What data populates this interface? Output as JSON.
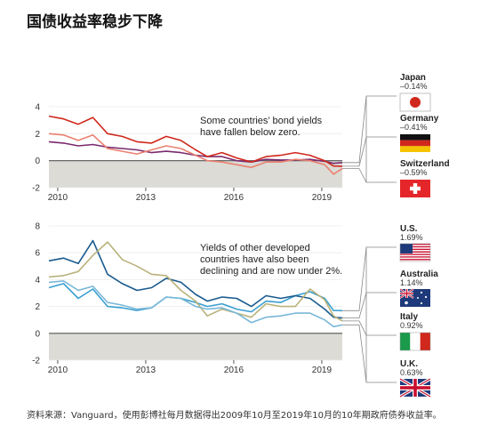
{
  "title": "国债收益率稳步下降",
  "source": "资料来源：Vanguard，使用彭博社每月数据得出2009年10月至2019年10月的10年期政府债券收益率。",
  "chart_data": [
    {
      "type": "line",
      "title": "",
      "annotation": [
        "Some countries’ bond yields",
        "have fallen below zero."
      ],
      "x_ticks": [
        "2010",
        "2013",
        "2016",
        "2019"
      ],
      "y_ticks": [
        4,
        2,
        0,
        -2
      ],
      "xlim": [
        2009.8,
        2019.8
      ],
      "ylim": [
        -2,
        4
      ],
      "x": [
        2009.8,
        2010.3,
        2010.8,
        2011.3,
        2011.8,
        2012.3,
        2012.8,
        2013.3,
        2013.8,
        2014.3,
        2014.8,
        2015.2,
        2015.7,
        2016.2,
        2016.7,
        2017.2,
        2017.7,
        2018.2,
        2018.7,
        2019.2,
        2019.5,
        2019.8
      ],
      "series": [
        {
          "name": "Japan",
          "color": "#7a2a6e",
          "values": [
            1.4,
            1.3,
            1.1,
            1.2,
            1.0,
            0.9,
            0.8,
            0.6,
            0.7,
            0.6,
            0.4,
            0.3,
            0.3,
            0.0,
            -0.1,
            0.1,
            0.05,
            0.05,
            0.1,
            -0.05,
            -0.2,
            -0.14
          ]
        },
        {
          "name": "Germany",
          "color": "#d0281c",
          "values": [
            3.3,
            3.1,
            2.7,
            3.2,
            2.0,
            1.8,
            1.4,
            1.3,
            1.8,
            1.5,
            0.8,
            0.3,
            0.6,
            0.2,
            -0.1,
            0.3,
            0.4,
            0.6,
            0.4,
            0.0,
            -0.4,
            -0.41
          ]
        },
        {
          "name": "Switzerland",
          "color": "#ea8070",
          "values": [
            2.0,
            1.9,
            1.5,
            1.9,
            0.9,
            0.7,
            0.5,
            0.8,
            1.1,
            0.9,
            0.4,
            0.0,
            -0.1,
            -0.3,
            -0.5,
            -0.1,
            -0.1,
            0.1,
            0.0,
            -0.3,
            -1.0,
            -0.59
          ]
        }
      ],
      "labels": [
        {
          "name": "Japan",
          "value": "–0.14%",
          "flag": "japan-flag"
        },
        {
          "name": "Germany",
          "value": "–0.41%",
          "flag": "germany-flag"
        },
        {
          "name": "Switzerland",
          "value": "–0.59%",
          "flag": "switzerland-flag"
        }
      ]
    },
    {
      "type": "line",
      "title": "",
      "annotation": [
        "Yields of other developed",
        "countries have also been",
        "declining and are now under 2%."
      ],
      "x_ticks": [
        "2010",
        "2013",
        "2016",
        "2019"
      ],
      "y_ticks": [
        8,
        6,
        4,
        2,
        0,
        -2
      ],
      "xlim": [
        2009.8,
        2019.8
      ],
      "ylim": [
        -2,
        8
      ],
      "x": [
        2009.8,
        2010.3,
        2010.8,
        2011.3,
        2011.8,
        2012.3,
        2012.8,
        2013.3,
        2013.8,
        2014.3,
        2014.8,
        2015.2,
        2015.7,
        2016.2,
        2016.7,
        2017.2,
        2017.7,
        2018.2,
        2018.7,
        2019.2,
        2019.5,
        2019.8
      ],
      "series": [
        {
          "name": "U.S.",
          "color": "#3a9fd0",
          "values": [
            3.4,
            3.7,
            2.6,
            3.3,
            2.0,
            1.9,
            1.7,
            1.9,
            2.7,
            2.6,
            2.3,
            2.0,
            2.2,
            1.8,
            1.6,
            2.4,
            2.3,
            2.8,
            3.1,
            2.6,
            1.7,
            1.69
          ]
        },
        {
          "name": "Australia",
          "color": "#1a5a8e",
          "values": [
            5.4,
            5.6,
            5.2,
            6.9,
            4.4,
            3.7,
            3.2,
            3.4,
            4.1,
            3.8,
            2.9,
            2.4,
            2.7,
            2.6,
            2.0,
            2.8,
            2.6,
            2.8,
            2.6,
            1.8,
            1.2,
            1.14
          ]
        },
        {
          "name": "Italy",
          "color": "#b9b27a",
          "values": [
            4.2,
            4.3,
            4.6,
            5.8,
            6.8,
            5.5,
            5.0,
            4.4,
            4.3,
            3.2,
            2.4,
            1.3,
            1.8,
            1.5,
            1.2,
            2.2,
            2.0,
            2.0,
            3.3,
            2.5,
            1.3,
            0.92
          ]
        },
        {
          "name": "U.K.",
          "color": "#79b7d8",
          "values": [
            3.8,
            3.9,
            3.2,
            3.5,
            2.3,
            2.1,
            1.8,
            1.9,
            2.7,
            2.6,
            2.0,
            1.8,
            1.9,
            1.5,
            0.8,
            1.2,
            1.3,
            1.5,
            1.5,
            1.0,
            0.5,
            0.63
          ]
        }
      ],
      "labels": [
        {
          "name": "U.S.",
          "value": "1.69%",
          "flag": "us-flag"
        },
        {
          "name": "Australia",
          "value": "1.14%",
          "flag": "australia-flag"
        },
        {
          "name": "Italy",
          "value": "0.92%",
          "flag": "italy-flag"
        },
        {
          "name": "U.K.",
          "value": "0.63%",
          "flag": "uk-flag"
        }
      ]
    }
  ]
}
